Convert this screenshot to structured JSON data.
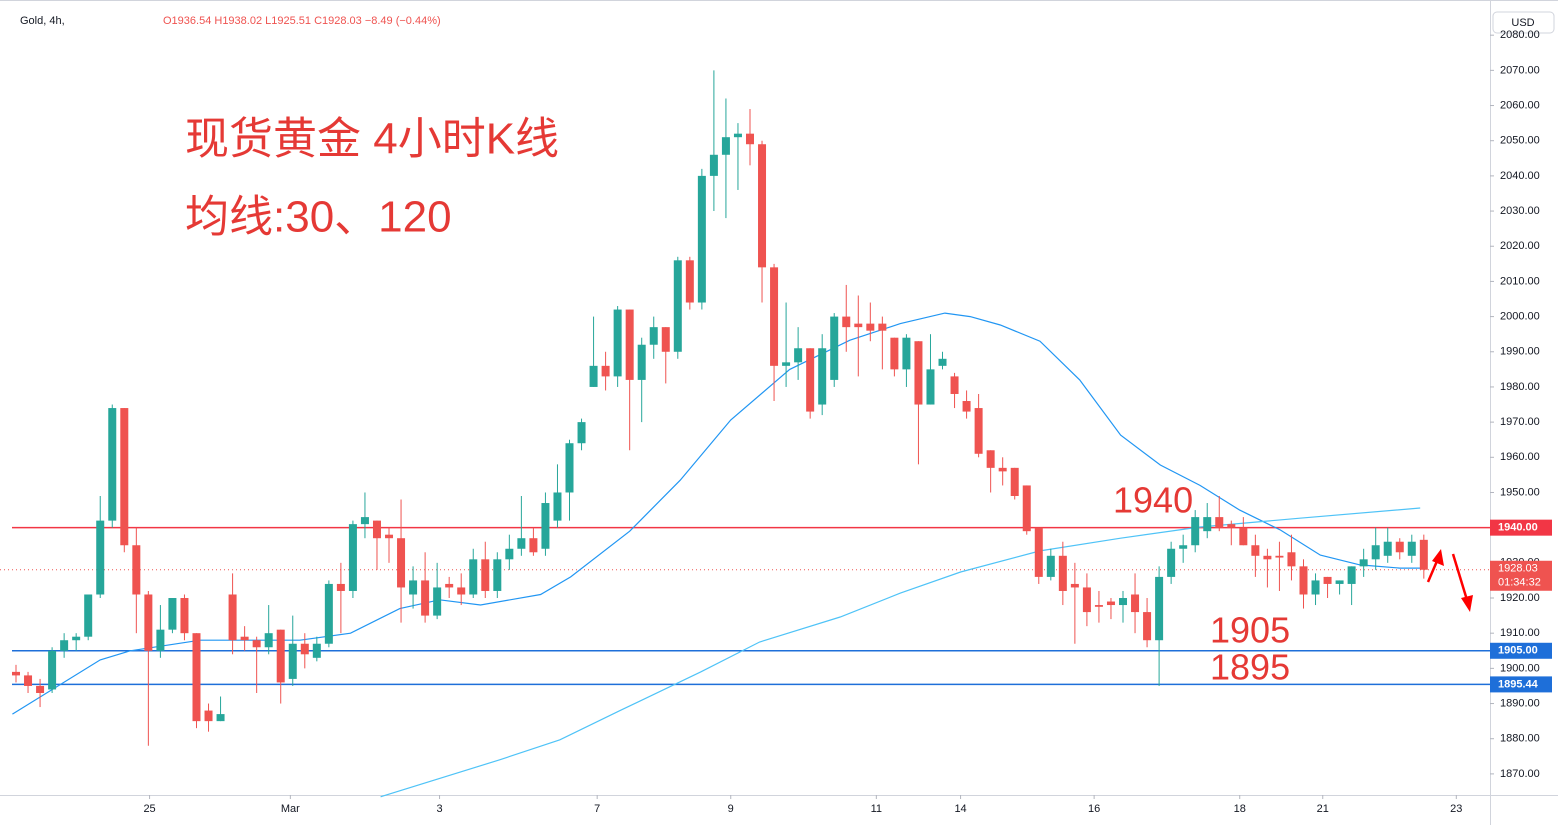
{
  "header": {
    "symbol": "Gold, 4h,",
    "ohlc": "O1936.54 H1938.02 L1925.51 C1928.03 −8.49 (−0.44%)",
    "currency": "USD"
  },
  "chart_data": {
    "type": "candlestick",
    "title": "现货黄金 4小时K线",
    "subtitle": "均线:30、120",
    "up_color": "#26a69a",
    "down_color": "#ef5350",
    "open": [
      1899,
      1898,
      1895,
      1894,
      1905,
      1908,
      1909,
      1921,
      1942,
      1974,
      1935,
      1921,
      1905,
      1911,
      1920,
      1910,
      1888,
      1885,
      1921,
      1909,
      1908,
      1906,
      1911,
      1897,
      1907,
      1903,
      1907,
      1924,
      1922,
      1941,
      1942,
      1938,
      1937,
      1921,
      1925,
      1915,
      1924,
      1923,
      1921,
      1931,
      1922,
      1931,
      1934,
      1937,
      1934,
      1942,
      1950,
      1964,
      1980,
      1986,
      1983,
      2002,
      1982,
      1992,
      1997,
      1990,
      2016,
      2004,
      2040,
      2046,
      2051,
      2052,
      2049,
      2014,
      1986,
      1987,
      1991,
      1975,
      1982,
      2000,
      1998,
      1998,
      1998,
      1994,
      1985,
      1993,
      1975,
      1986,
      1983,
      1976,
      1974,
      1962,
      1957,
      1957,
      1952,
      1940,
      1926,
      1932,
      1924,
      1923,
      1918,
      1919,
      1918,
      1921,
      1916,
      1908,
      1926,
      1934,
      1935,
      1939,
      1943,
      1941,
      1940,
      1935,
      1932,
      1932,
      1933,
      1929,
      1921,
      1926,
      1924,
      1924,
      1929,
      1931,
      1932,
      1936,
      1932,
      1936.54
    ],
    "high": [
      1901,
      1899,
      1897,
      1906,
      1910,
      1910,
      1921,
      1949,
      1975,
      1974,
      1940,
      1922,
      1918,
      1920,
      1921,
      1910,
      1890,
      1892,
      1927,
      1912,
      1909,
      1918,
      1911,
      1915,
      1910,
      1909,
      1925,
      1930,
      1942,
      1950,
      1942,
      1940,
      1948,
      1929,
      1933,
      1930,
      1926,
      1927,
      1934,
      1936,
      1933,
      1938,
      1949,
      1940,
      1950,
      1958,
      1965,
      1971,
      2000,
      1990,
      2003,
      2002,
      1994,
      2000,
      1997,
      2017,
      2017,
      2042,
      2070,
      2062,
      2055,
      2059,
      2050,
      2015,
      2004,
      1997,
      1991,
      1995,
      2001,
      2009,
      2006,
      2004,
      2000,
      1994,
      1995,
      1993,
      1995,
      1990,
      1984,
      1979,
      1978,
      1962,
      1960,
      1957,
      1952,
      1940,
      1934,
      1936,
      1930,
      1927,
      1922,
      1920,
      1922,
      1927,
      1920,
      1929,
      1936,
      1938,
      1945,
      1947,
      1949,
      1942,
      1943,
      1938,
      1934,
      1936,
      1938,
      1931,
      1927,
      1926,
      1925,
      1929,
      1934,
      1940,
      1940,
      1937,
      1938,
      1938.02
    ],
    "low": [
      1896,
      1893,
      1889,
      1893,
      1903,
      1905,
      1908,
      1920,
      1940,
      1933,
      1910,
      1878,
      1903,
      1910,
      1908,
      1883,
      1882,
      1885,
      1904,
      1905,
      1893,
      1904,
      1890,
      1895,
      1900,
      1902,
      1906,
      1910,
      1920,
      1937,
      1928,
      1930,
      1913,
      1917,
      1913,
      1914,
      1920,
      1918,
      1920,
      1920,
      1920,
      1928,
      1932,
      1932,
      1932,
      1940,
      1942,
      1962,
      1980,
      1979,
      1980,
      1962,
      1970,
      1988,
      1981,
      1988,
      2002,
      2002,
      2030,
      2028,
      2036,
      2043,
      2004,
      1976,
      1980,
      1982,
      1971,
      1972,
      1980,
      1990,
      1983,
      1993,
      1985,
      1983,
      1980,
      1958,
      1975,
      1985,
      1974,
      1971,
      1960,
      1950,
      1952,
      1948,
      1938,
      1924,
      1925,
      1918,
      1907,
      1912,
      1913,
      1914,
      1913,
      1910,
      1906,
      1895,
      1924,
      1930,
      1933,
      1937,
      1939,
      1935,
      1935,
      1926,
      1923,
      1922,
      1925,
      1917,
      1918,
      1920,
      1921,
      1918,
      1926,
      1928,
      1930,
      1931,
      1930,
      1925.51
    ],
    "close": [
      1898,
      1895,
      1893,
      1905,
      1908,
      1909,
      1921,
      1942,
      1974,
      1935,
      1921,
      1905,
      1911,
      1920,
      1910,
      1885,
      1885,
      1887,
      1908,
      1908,
      1906,
      1910,
      1896,
      1907,
      1904,
      1907,
      1924,
      1922,
      1941,
      1943,
      1937,
      1937,
      1923,
      1925,
      1915,
      1923,
      1923,
      1921,
      1931,
      1922,
      1931,
      1934,
      1937,
      1933,
      1947,
      1950,
      1964,
      1970,
      1986,
      1983,
      2002,
      1982,
      1992,
      1997,
      1990,
      2016,
      2004,
      2040,
      2046,
      2051,
      2052,
      2049,
      2014,
      1986,
      1987,
      1991,
      1973,
      1991,
      2000,
      1997,
      1997,
      1996,
      1996,
      1985,
      1994,
      1975,
      1985,
      1988,
      1978,
      1973,
      1961,
      1957,
      1956,
      1949,
      1939,
      1926,
      1932,
      1922,
      1923,
      1916,
      1917.5,
      1918,
      1920,
      1916,
      1908,
      1926,
      1934,
      1935,
      1943,
      1943,
      1940,
      1940,
      1935,
      1932,
      1931,
      1931.5,
      1929,
      1921,
      1925,
      1924,
      1925,
      1929,
      1931,
      1935,
      1936,
      1933,
      1936,
      1928.03
    ],
    "moving_averages": [
      {
        "color": "#2196f3",
        "x": [
          -0.3,
          7.0,
          9.5,
          15.3,
          23.6,
          27.8,
          31.9,
          35.2,
          38.6,
          43.6,
          46.1,
          51.0,
          55.2,
          59.4,
          64.3,
          69.3,
          73.5,
          77.2,
          79.3,
          81.8,
          85.1,
          88.4,
          91.8,
          95.1,
          98.4,
          101.7,
          105.1,
          108.4,
          111.7,
          115.0,
          116.7
        ],
        "values": [
          1887,
          1902.4,
          1905,
          1908,
          1908,
          1910,
          1917,
          1919.5,
          1918,
          1921,
          1926,
          1939,
          1953.5,
          1970.6,
          1985,
          1993.3,
          1998,
          2001,
          2000,
          1997.6,
          1993,
          1982,
          1966.3,
          1957.8,
          1952,
          1945,
          1939.3,
          1932.2,
          1929.4,
          1928.5,
          1928.5
        ]
      },
      {
        "color": "#4fc3f7",
        "x": [
          30.3,
          40.2,
          45.2,
          50.2,
          56.9,
          61.8,
          68.5,
          73.5,
          78.5,
          85.1,
          91.8,
          98.4,
          106.7,
          116.7
        ],
        "values": [
          1863.5,
          1874,
          1879.7,
          1888,
          1899,
          1907.5,
          1914.6,
          1921.4,
          1927.4,
          1933.4,
          1937,
          1940.2,
          1942.7,
          1945.6
        ]
      }
    ],
    "levels": [
      {
        "value": 1940,
        "label": "1940.00",
        "color": "#f23645"
      },
      {
        "value": 1905,
        "label": "1905.00",
        "color": "#1e6fd9"
      },
      {
        "value": 1895.44,
        "label": "1895.44",
        "color": "#1e6fd9"
      }
    ],
    "annotations": [
      "1940",
      "1905",
      "1895"
    ],
    "last_price": 1928.03,
    "countdown": "01:34:32",
    "xlim": [
      -1.33,
      122.5
    ],
    "xticks": [
      {
        "value": 11.1,
        "label": "25"
      },
      {
        "value": 22.8,
        "label": "Mar"
      },
      {
        "value": 35.2,
        "label": "3"
      },
      {
        "value": 48.3,
        "label": "7"
      },
      {
        "value": 59.4,
        "label": "9"
      },
      {
        "value": 71.5,
        "label": "11"
      },
      {
        "value": 78.5,
        "label": "14"
      },
      {
        "value": 89.6,
        "label": "16"
      },
      {
        "value": 101.7,
        "label": "18"
      },
      {
        "value": 108.6,
        "label": "21"
      },
      {
        "value": 119.7,
        "label": "23"
      }
    ],
    "ylim": [
      1864,
      2090
    ],
    "yticks": [
      {
        "value": 1870,
        "label": "1870.00"
      },
      {
        "value": 1880,
        "label": "1880.00"
      },
      {
        "value": 1890,
        "label": "1890.00"
      },
      {
        "value": 1900,
        "label": "1900.00"
      },
      {
        "value": 1910,
        "label": "1910.00"
      },
      {
        "value": 1920,
        "label": "1920.00"
      },
      {
        "value": 1930,
        "label": "1930.00"
      },
      {
        "value": 1940,
        "label": "1940.00"
      },
      {
        "value": 1950,
        "label": "1950.00"
      },
      {
        "value": 1960,
        "label": "1960.00"
      },
      {
        "value": 1970,
        "label": "1970.00"
      },
      {
        "value": 1980,
        "label": "1980.00"
      },
      {
        "value": 1990,
        "label": "1990.00"
      },
      {
        "value": 2000,
        "label": "2000.00"
      },
      {
        "value": 2010,
        "label": "2010.00"
      },
      {
        "value": 2020,
        "label": "2020.00"
      },
      {
        "value": 2030,
        "label": "2030.00"
      },
      {
        "value": 2040,
        "label": "2040.00"
      },
      {
        "value": 2050,
        "label": "2050.00"
      },
      {
        "value": 2060,
        "label": "2060.00"
      },
      {
        "value": 2070,
        "label": "2070.00"
      },
      {
        "value": 2080,
        "label": "2080.00"
      }
    ],
    "grid": false
  }
}
